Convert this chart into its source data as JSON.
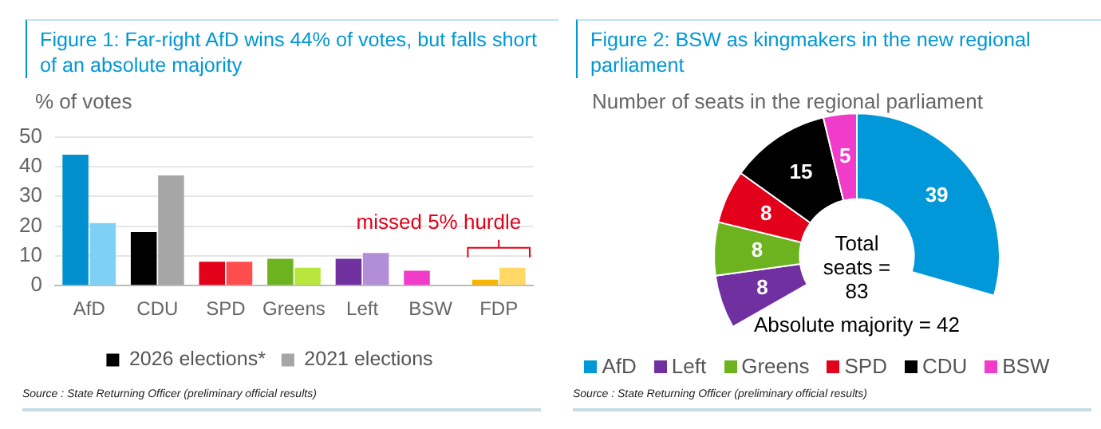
{
  "chart_data": [
    {
      "type": "bar",
      "title": "Figure 1: Far-right AfD wins 44% of votes, but falls short of an absolute majority",
      "ylabel": "% of votes",
      "categories": [
        "AfD",
        "CDU",
        "SPD",
        "Greens",
        "Left",
        "BSW",
        "FDP"
      ],
      "series": [
        {
          "name": "2026 elections*",
          "color": "#000000",
          "colors": [
            "#0090d0",
            "#000000",
            "#e2001a",
            "#6db31f",
            "#7030a0",
            "#f03cc8",
            "#f7b500"
          ],
          "values": [
            44,
            18,
            8,
            9,
            9,
            5,
            2
          ]
        },
        {
          "name": "2021 elections",
          "color": "#a6a6a6",
          "colors": [
            "#7fd0f5",
            "#a6a6a6",
            "#ff4c4c",
            "#b9e63c",
            "#b38ed8",
            "#d9a3e8",
            "#ffd866"
          ],
          "values": [
            21,
            37,
            8,
            6,
            11,
            null,
            6
          ]
        }
      ],
      "ylim": [
        0,
        50
      ],
      "yticks": [
        0,
        10,
        20,
        30,
        40,
        50
      ],
      "grid": "y",
      "legend": "bottom",
      "annotations": [
        "missed 5% hurdle",
        "Source : State Returning Officer (preliminary official results)"
      ]
    },
    {
      "type": "donut",
      "title": "Figure 2: BSW as kingmakers in the new regional parliament",
      "subtitle": "Number of seats in the regional parliament",
      "categories": [
        "AfD",
        "Left",
        "Greens",
        "SPD",
        "CDU",
        "BSW"
      ],
      "values": [
        39,
        8,
        8,
        8,
        15,
        5
      ],
      "colors": [
        "#0098d8",
        "#7030a0",
        "#6db31f",
        "#e2001a",
        "#000000",
        "#f03cc8"
      ],
      "data_labels": true,
      "legend": "bottom",
      "annotations": [
        "Total seats = 83",
        "Absolute majority = 42",
        "Source : State Returning Officer (preliminary official results)"
      ]
    }
  ]
}
